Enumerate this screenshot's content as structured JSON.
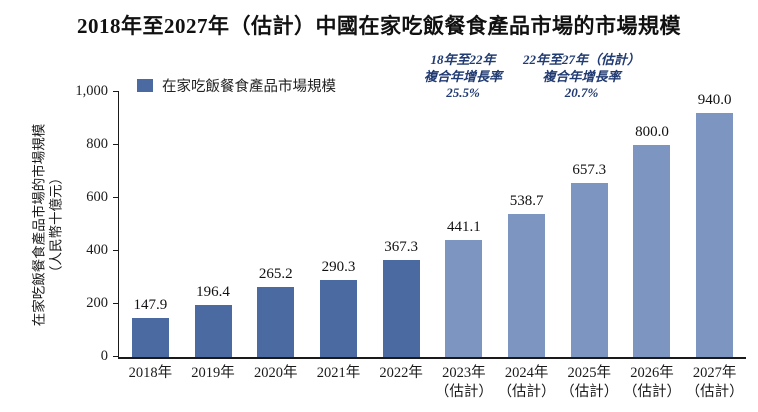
{
  "chart_data": {
    "type": "bar",
    "title": "2018年至2027年（估計）中國在家吃飯餐食產品市場的市場規模",
    "ylabel_lines": [
      "在家吃飯餐食產品市場的市場規模",
      "（人民幣十億元）"
    ],
    "ylabel": "在家吃飯餐食產品市場的市場規模（人民幣十億元）",
    "categories": [
      "2018年",
      "2019年",
      "2020年",
      "2021年",
      "2022年",
      "2023年（估計）",
      "2024年（估計）",
      "2025年（估計）",
      "2026年（估計）",
      "2027年（估計）"
    ],
    "series": [
      {
        "name": "在家吃飯餐食產品市場規模",
        "values": [
          147.9,
          196.4,
          265.2,
          290.3,
          367.3,
          441.1,
          538.7,
          657.3,
          800.0,
          940.0
        ]
      }
    ],
    "ylim": [
      0,
      1000
    ],
    "y_ticks": [
      0,
      200,
      400,
      600,
      800,
      1000
    ],
    "estimated_start_index": 5,
    "colors": {
      "historical_bar": "#4c6aa2",
      "estimated_bar": "#7c95c1",
      "annotation_text": "#203a72",
      "axis": "#1a1a1a"
    },
    "annotations": [
      {
        "period": "18年至22年",
        "metric": "複合年增長率",
        "value": "25.5%"
      },
      {
        "period": "22年至27年（估計）",
        "metric": "複合年增長率",
        "value": "20.7%"
      }
    ],
    "legend_position": "top-left",
    "grid": false
  }
}
